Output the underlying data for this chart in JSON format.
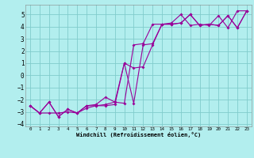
{
  "xlabel": "Windchill (Refroidissement éolien,°C)",
  "bg_color": "#b2eeee",
  "grid_color": "#80cccc",
  "line_color": "#990099",
  "line1_x": [
    0,
    1,
    2,
    3,
    4,
    5,
    6,
    7,
    8,
    9,
    10,
    11,
    12,
    13,
    14,
    15,
    16,
    17,
    18,
    19,
    20,
    21,
    22,
    23
  ],
  "line1_y": [
    -2.5,
    -3.1,
    -3.1,
    -3.1,
    -3.0,
    -3.1,
    -2.7,
    -2.5,
    -2.5,
    -2.4,
    1.0,
    0.6,
    0.7,
    2.5,
    4.2,
    4.2,
    4.3,
    5.0,
    4.1,
    4.2,
    4.1,
    4.9,
    3.9,
    5.3
  ],
  "line2_x": [
    0,
    1,
    2,
    3,
    4,
    5,
    6,
    7,
    8,
    9,
    10,
    11,
    12,
    13,
    14,
    15,
    16,
    17,
    18,
    19,
    20,
    21,
    22,
    23
  ],
  "line2_y": [
    -2.5,
    -3.1,
    -2.2,
    -3.4,
    -2.8,
    -3.1,
    -2.5,
    -2.4,
    -1.8,
    -2.2,
    1.0,
    -2.3,
    2.5,
    2.6,
    4.2,
    4.2,
    4.3,
    5.0,
    4.1,
    4.2,
    4.1,
    4.9,
    3.9,
    5.3
  ],
  "line3_x": [
    0,
    1,
    2,
    3,
    4,
    5,
    6,
    7,
    8,
    9,
    10,
    11,
    12,
    13,
    14,
    15,
    16,
    17,
    18,
    19,
    20,
    21,
    22,
    23
  ],
  "line3_y": [
    -2.5,
    -3.1,
    -2.2,
    -3.4,
    -2.8,
    -3.1,
    -2.5,
    -2.5,
    -2.4,
    -2.2,
    -2.3,
    2.5,
    2.6,
    4.2,
    4.2,
    4.3,
    5.0,
    4.1,
    4.2,
    4.1,
    4.9,
    3.9,
    5.3,
    5.3
  ],
  "xlim": [
    -0.5,
    23.5
  ],
  "ylim": [
    -4.2,
    5.8
  ],
  "yticks": [
    -4,
    -3,
    -2,
    -1,
    0,
    1,
    2,
    3,
    4,
    5
  ],
  "xticks": [
    0,
    1,
    2,
    3,
    4,
    5,
    6,
    7,
    8,
    9,
    10,
    11,
    12,
    13,
    14,
    15,
    16,
    17,
    18,
    19,
    20,
    21,
    22,
    23
  ]
}
